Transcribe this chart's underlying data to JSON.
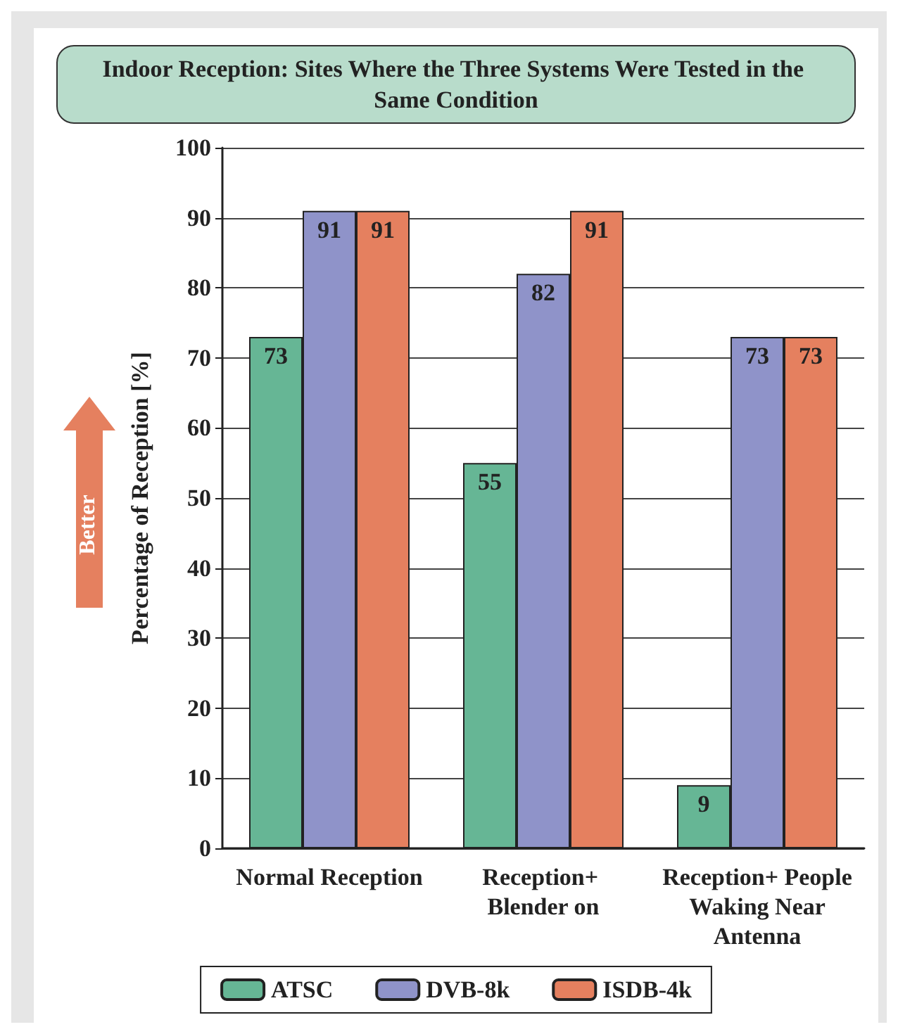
{
  "chart_data": {
    "type": "bar",
    "title": "Indoor Reception: Sites Where the Three Systems Were Tested in the Same Condition",
    "ylabel": "Percentage of Reception [%]",
    "annotations": [
      "Better"
    ],
    "categories": [
      "Normal Reception",
      "Reception+ Blender on",
      "Reception+ People Waking Near Antenna"
    ],
    "series": [
      {
        "name": "ATSC",
        "color": "#66b695",
        "values": [
          73,
          55,
          9
        ]
      },
      {
        "name": "DVB-8k",
        "color": "#8f93c9",
        "values": [
          91,
          82,
          73
        ]
      },
      {
        "name": "ISDB-4k",
        "color": "#e5805f",
        "values": [
          91,
          91,
          73
        ]
      }
    ],
    "ylim": [
      0,
      100
    ],
    "yticks": [
      0,
      10,
      20,
      30,
      40,
      50,
      60,
      70,
      80,
      90,
      100
    ],
    "grid": "y",
    "legend": "bottom",
    "data_labels": true
  }
}
